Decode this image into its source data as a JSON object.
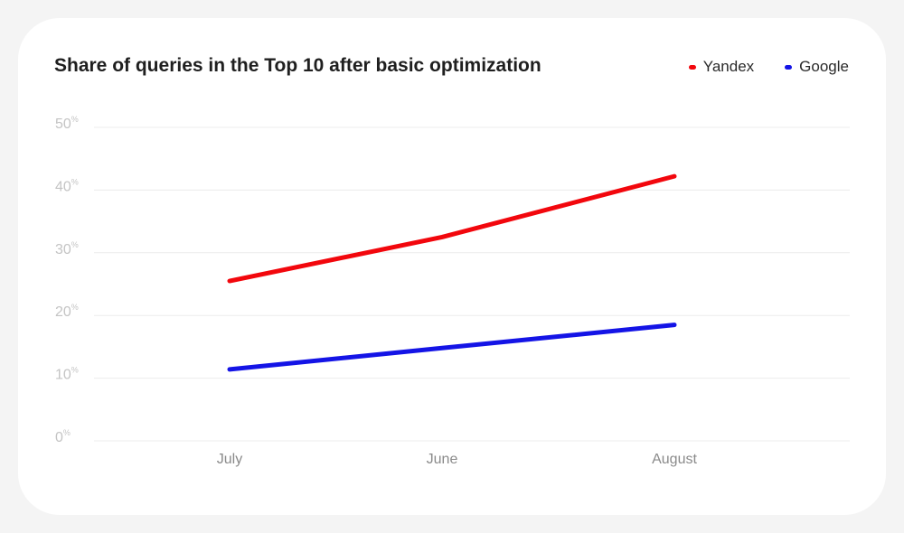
{
  "chart_data": {
    "type": "line",
    "title": "Share of queries in the Top 10 after basic optimization",
    "categories": [
      "July",
      "June",
      "August"
    ],
    "series": [
      {
        "name": "Yandex",
        "color": "#f2070d",
        "values": [
          25.5,
          32.5,
          42.2
        ]
      },
      {
        "name": "Google",
        "color": "#1414e6",
        "values": [
          11.4,
          14.8,
          18.5
        ]
      }
    ],
    "yticks": [
      {
        "value": 0,
        "label": "0",
        "unit": "%"
      },
      {
        "value": 10,
        "label": "10",
        "unit": "%"
      },
      {
        "value": 20,
        "label": "20",
        "unit": "%"
      },
      {
        "value": 30,
        "label": "30",
        "unit": "%"
      },
      {
        "value": 40,
        "label": "40",
        "unit": "%"
      },
      {
        "value": 50,
        "label": "50",
        "unit": "%"
      }
    ],
    "ylim": [
      0,
      50
    ],
    "xlabel": "",
    "ylabel": "",
    "grid": true,
    "legend_position": "top-right"
  }
}
